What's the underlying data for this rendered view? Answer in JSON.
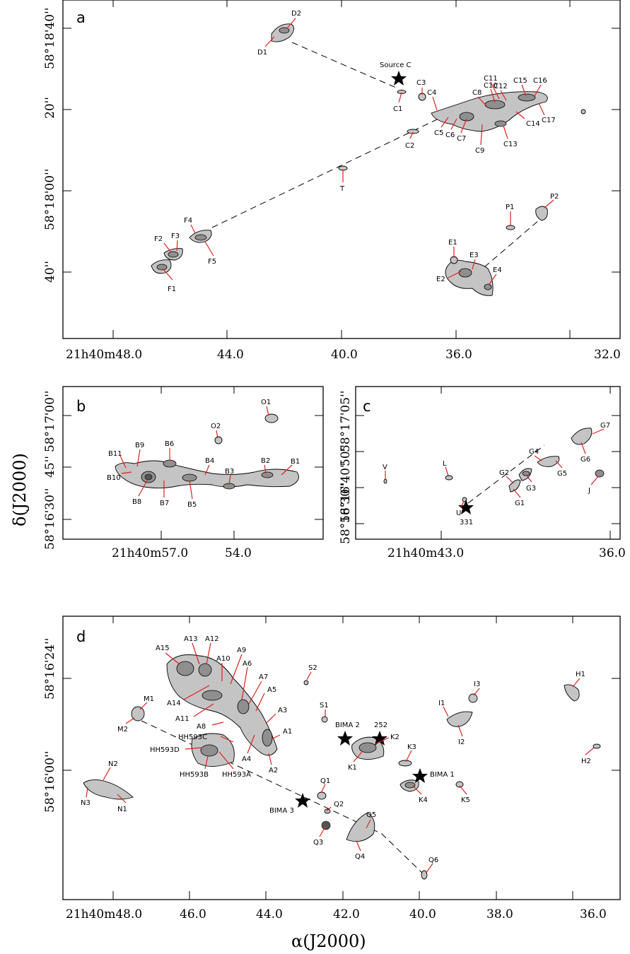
{
  "axes": {
    "x_title": "α(J2000)",
    "y_title": "δ(J2000)"
  },
  "colors": {
    "leader": "#e0201e",
    "contour_fill": "#c4c4c4",
    "contour_dark": "#8f8f8f"
  },
  "panels": {
    "a": {
      "letter": "a",
      "x_ticks": [
        "21h40m48.0",
        "44.0",
        "40.0",
        "36.0",
        "32.0"
      ],
      "y_ticks": [
        "58°18'40''",
        "20''",
        "58°18'00''",
        "40''"
      ],
      "star_labels": [
        "Source C"
      ],
      "labels": [
        "D1",
        "D2",
        "C1",
        "C2",
        "C3",
        "C4",
        "C5",
        "C6",
        "C7",
        "C8",
        "C9",
        "C10",
        "C11",
        "C12",
        "C13",
        "C14",
        "C15",
        "C16",
        "C17",
        "T",
        "F1",
        "F2",
        "F3",
        "F4",
        "F5",
        "P1",
        "P2",
        "E1",
        "E2",
        "E3",
        "E4"
      ]
    },
    "b": {
      "letter": "b",
      "x_ticks": [
        "21h40m57.0",
        "54.0"
      ],
      "y_ticks": [
        "58°17'00''",
        "45''",
        "58°16'30''"
      ],
      "labels": [
        "O1",
        "O2",
        "B1",
        "B2",
        "B3",
        "B4",
        "B5",
        "B6",
        "B7",
        "B8",
        "B9",
        "B10",
        "B11"
      ]
    },
    "c": {
      "letter": "c",
      "x_ticks": [
        "21h40m43.0",
        "36.0"
      ],
      "y_ticks": [
        "58°17'05''",
        "50''",
        "58°16'40''",
        "58°16'30''"
      ],
      "star_labels": [
        "331"
      ],
      "labels": [
        "V",
        "L",
        "U",
        "G1",
        "G2",
        "G3",
        "G4",
        "G5",
        "G6",
        "G7",
        "J"
      ]
    },
    "d": {
      "letter": "d",
      "x_ticks": [
        "21h40m48.0",
        "46.0",
        "44.0",
        "42.0",
        "40.0",
        "38.0",
        "36.0"
      ],
      "y_ticks": [
        "58°16'24''",
        "58°16'00''"
      ],
      "star_labels": [
        "BIMA 2",
        "252",
        "BIMA 1",
        "BIMA 3"
      ],
      "labels": [
        "A1",
        "A2",
        "A3",
        "A4",
        "A5",
        "A6",
        "A7",
        "A8",
        "A9",
        "A10",
        "A11",
        "A12",
        "A13",
        "A14",
        "A15",
        "M1",
        "M2",
        "HH593C",
        "HH593D",
        "HH593B",
        "HH593A",
        "N1",
        "N2",
        "N3",
        "S1",
        "S2",
        "K1",
        "K2",
        "K3",
        "K4",
        "K5",
        "Q1",
        "Q2",
        "Q3",
        "Q4",
        "Q5",
        "Q6",
        "I1",
        "I2",
        "I3",
        "H1",
        "H2"
      ]
    }
  }
}
